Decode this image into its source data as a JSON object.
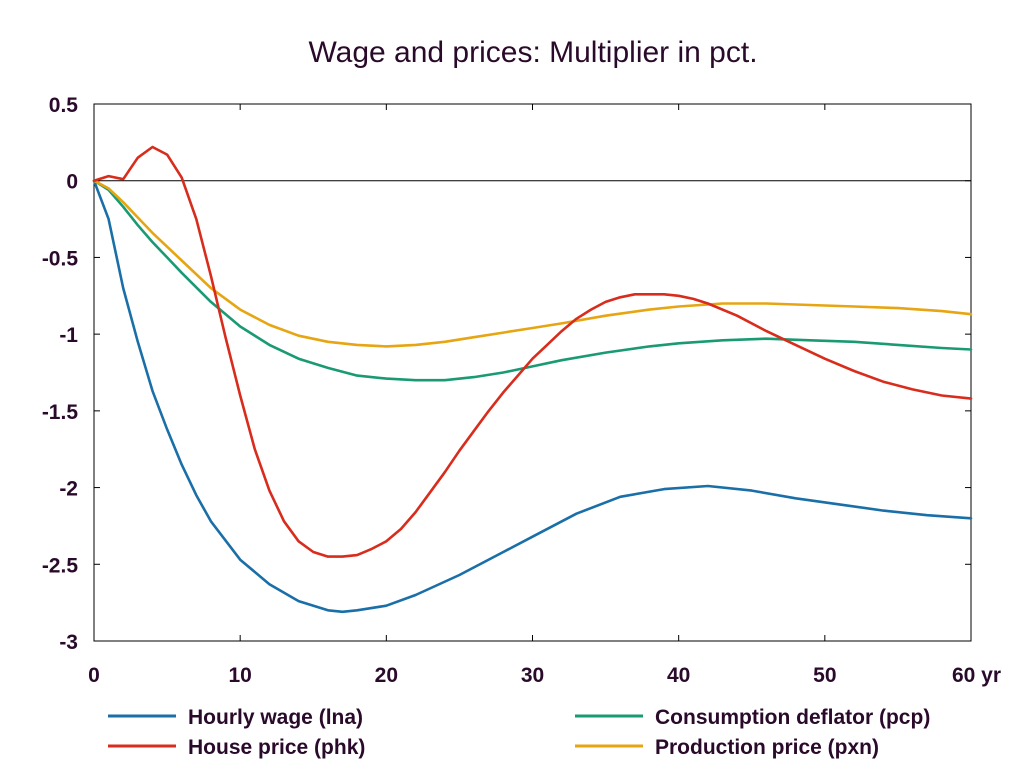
{
  "chart_data": {
    "type": "line",
    "title": "Wage and prices: Multiplier in pct.",
    "xlabel": "",
    "ylabel": "",
    "x_unit_label": "yr",
    "xlim": [
      0,
      60
    ],
    "ylim": [
      -3,
      0.5
    ],
    "x_ticks": [
      0,
      10,
      20,
      30,
      40,
      50,
      60
    ],
    "x_tick_labels": [
      "0",
      "10",
      "20",
      "30",
      "40",
      "50",
      "60 yr"
    ],
    "y_ticks": [
      0.5,
      0,
      -0.5,
      -1,
      -1.5,
      -2,
      -2.5,
      -3
    ],
    "y_tick_labels": [
      "0.5",
      "0",
      "-0.5",
      "-1",
      "-1.5",
      "-2",
      "-2.5",
      "-3"
    ],
    "grid": false,
    "zero_line": true,
    "legend_position": "bottom",
    "series": [
      {
        "name": "Hourly wage (lna)",
        "color": "#1a6fa8",
        "x": [
          0,
          1,
          2,
          3,
          4,
          5,
          6,
          7,
          8,
          10,
          12,
          14,
          16,
          17,
          18,
          20,
          22,
          25,
          28,
          30,
          33,
          36,
          39,
          42,
          45,
          48,
          51,
          54,
          57,
          60
        ],
        "values": [
          0,
          -0.25,
          -0.7,
          -1.05,
          -1.37,
          -1.62,
          -1.85,
          -2.05,
          -2.22,
          -2.47,
          -2.63,
          -2.74,
          -2.8,
          -2.81,
          -2.8,
          -2.77,
          -2.7,
          -2.57,
          -2.42,
          -2.32,
          -2.17,
          -2.06,
          -2.01,
          -1.99,
          -2.02,
          -2.07,
          -2.11,
          -2.15,
          -2.18,
          -2.2
        ]
      },
      {
        "name": "Consumption deflator (pcp)",
        "color": "#1a9a73",
        "x": [
          0,
          1,
          2,
          3,
          4,
          5,
          6,
          8,
          10,
          12,
          14,
          16,
          18,
          20,
          22,
          24,
          26,
          28,
          30,
          32,
          35,
          38,
          40,
          43,
          46,
          49,
          52,
          55,
          58,
          60
        ],
        "values": [
          0,
          -0.06,
          -0.17,
          -0.29,
          -0.4,
          -0.5,
          -0.6,
          -0.79,
          -0.95,
          -1.07,
          -1.16,
          -1.22,
          -1.27,
          -1.29,
          -1.3,
          -1.3,
          -1.28,
          -1.25,
          -1.21,
          -1.17,
          -1.12,
          -1.08,
          -1.06,
          -1.04,
          -1.03,
          -1.04,
          -1.05,
          -1.07,
          -1.09,
          -1.1
        ]
      },
      {
        "name": "House price (phk)",
        "color": "#d82c1c",
        "x": [
          0,
          1,
          2,
          3,
          4,
          5,
          6,
          7,
          8,
          9,
          10,
          11,
          12,
          13,
          14,
          15,
          16,
          17,
          18,
          19,
          20,
          21,
          22,
          23,
          24,
          25,
          26,
          27,
          28,
          29,
          30,
          31,
          32,
          33,
          34,
          35,
          36,
          37,
          38,
          39,
          40,
          41,
          42,
          44,
          46,
          48,
          50,
          52,
          54,
          56,
          58,
          60
        ],
        "values": [
          0,
          0.03,
          0.01,
          0.15,
          0.22,
          0.17,
          0.02,
          -0.25,
          -0.62,
          -1.02,
          -1.4,
          -1.75,
          -2.02,
          -2.22,
          -2.35,
          -2.42,
          -2.45,
          -2.45,
          -2.44,
          -2.4,
          -2.35,
          -2.27,
          -2.16,
          -2.03,
          -1.9,
          -1.76,
          -1.63,
          -1.5,
          -1.38,
          -1.27,
          -1.16,
          -1.07,
          -0.98,
          -0.9,
          -0.84,
          -0.79,
          -0.76,
          -0.74,
          -0.74,
          -0.74,
          -0.75,
          -0.77,
          -0.8,
          -0.88,
          -0.98,
          -1.07,
          -1.16,
          -1.24,
          -1.31,
          -1.36,
          -1.4,
          -1.42
        ]
      },
      {
        "name": "Production price (pxn)",
        "color": "#e6a511",
        "x": [
          0,
          1,
          2,
          3,
          4,
          5,
          6,
          8,
          10,
          12,
          14,
          16,
          18,
          20,
          22,
          24,
          26,
          28,
          30,
          32,
          35,
          38,
          40,
          43,
          46,
          49,
          52,
          55,
          58,
          60
        ],
        "values": [
          0,
          -0.05,
          -0.14,
          -0.24,
          -0.34,
          -0.43,
          -0.52,
          -0.7,
          -0.84,
          -0.94,
          -1.01,
          -1.05,
          -1.07,
          -1.08,
          -1.07,
          -1.05,
          -1.02,
          -0.99,
          -0.96,
          -0.93,
          -0.88,
          -0.84,
          -0.82,
          -0.8,
          -0.8,
          -0.81,
          -0.82,
          -0.83,
          -0.85,
          -0.87
        ]
      }
    ]
  }
}
